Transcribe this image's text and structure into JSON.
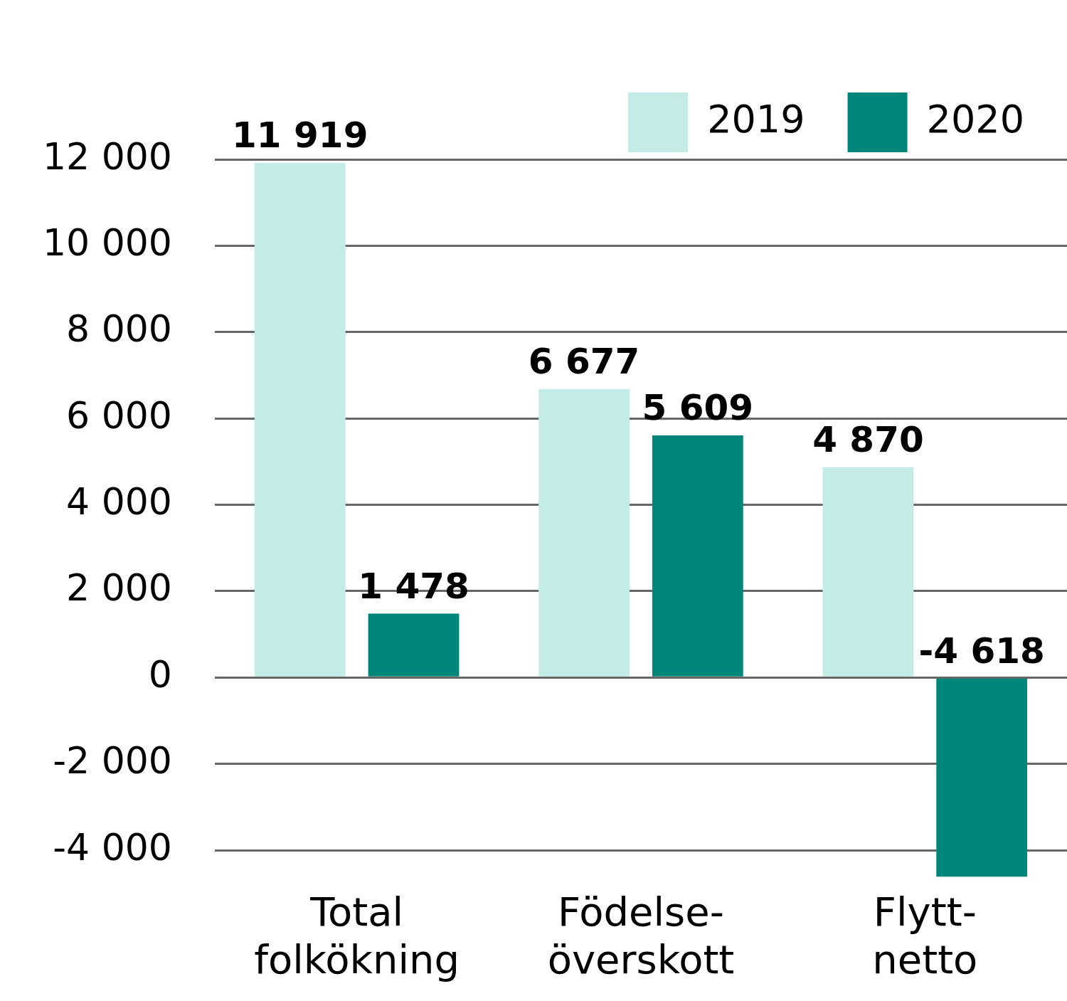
{
  "chart_data": {
    "type": "bar",
    "categories": [
      "Total folkökning",
      "Födelse-överskott",
      "Flytt-netto"
    ],
    "series": [
      {
        "name": "2019",
        "color": "#c3ece6",
        "values": [
          11919,
          6677,
          4870
        ],
        "value_labels": [
          "11 919",
          "6 677",
          "4 870"
        ]
      },
      {
        "name": "2020",
        "color": "#00857a",
        "values": [
          1478,
          5609,
          -4618
        ],
        "value_labels": [
          "1 478",
          "5 609",
          "-4 618"
        ]
      }
    ],
    "ylim": [
      -4618,
      12000
    ],
    "yticks": [
      {
        "value": -4000,
        "label": "-4 000"
      },
      {
        "value": -2000,
        "label": "-2 000"
      },
      0,
      {
        "value": 2000,
        "label": "2 000"
      },
      {
        "value": 4000,
        "label": "4 000"
      },
      {
        "value": 6000,
        "label": "6 000"
      },
      {
        "value": 8000,
        "label": "8 000"
      },
      {
        "value": 10000,
        "label": "10 000"
      },
      {
        "value": 12000,
        "label": "12 000"
      }
    ],
    "grid": "y",
    "legend": "top right"
  }
}
